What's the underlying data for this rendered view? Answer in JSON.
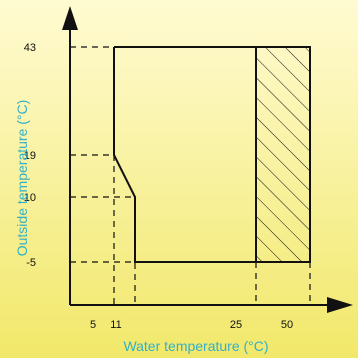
{
  "colors": {
    "bg_top": "#fffbd2",
    "bg_bottom": "#f1e86a",
    "ink": "#111111",
    "label": "#33b0c8"
  },
  "chart_data": {
    "type": "area",
    "xlabel": "Water temperature (°C)",
    "ylabel": "Outside temperature (°C)",
    "x_ticks": [
      "5",
      "11",
      "25",
      "50"
    ],
    "y_ticks": [
      "43",
      "19",
      "10",
      "-5"
    ],
    "x_guides": [
      "11",
      "15",
      "45",
      "55"
    ],
    "y_guides": [
      "43",
      "19",
      "10",
      "-5"
    ],
    "operating_region": [
      {
        "x": "11",
        "y": "43"
      },
      {
        "x": "55",
        "y": "43"
      },
      {
        "x": "55",
        "y": "-5"
      },
      {
        "x": "15",
        "y": "-5"
      },
      {
        "x": "15",
        "y": "10"
      },
      {
        "x": "11",
        "y": "19"
      }
    ],
    "hatched_region": {
      "x_from": "45",
      "x_to": "55",
      "y_from": "-5",
      "y_to": "43"
    },
    "grid": false,
    "legend": "none"
  }
}
